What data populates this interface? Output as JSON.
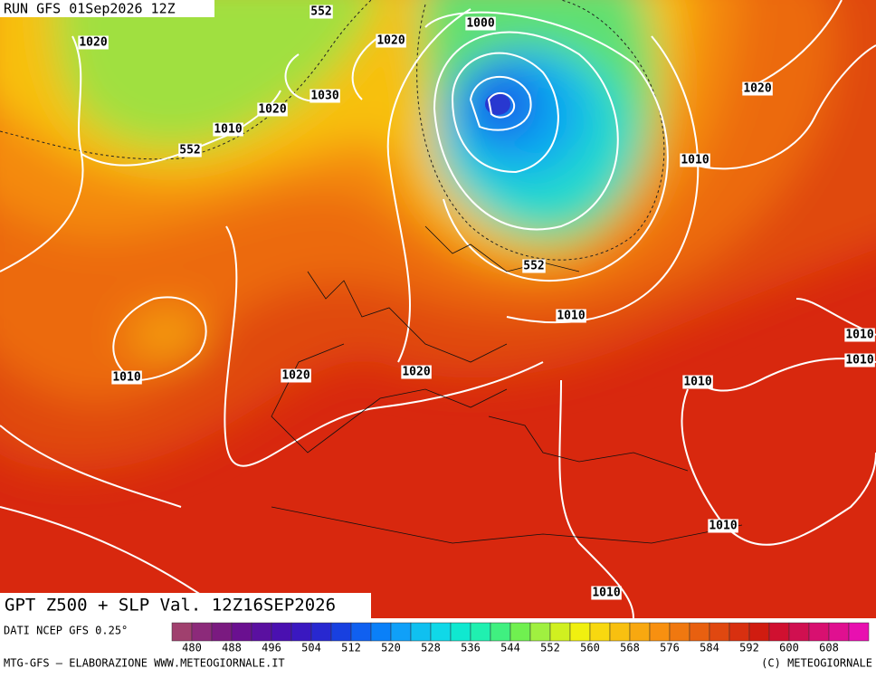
{
  "header": {
    "run": "RUN GFS 01Sep2026 12Z"
  },
  "map": {
    "title": "GPT Z500 + SLP Val. 12Z16SEP2026",
    "contour_labels": [
      "552",
      "1020",
      "1020",
      "1000",
      "1030",
      "1020",
      "1010",
      "552",
      "1020",
      "1010",
      "552",
      "1010",
      "1010",
      "1020",
      "1020",
      "1010",
      "1010",
      "1010",
      "1010",
      "1010"
    ]
  },
  "colorbar": {
    "source": "DATI NCEP GFS 0.25°",
    "colors": [
      "#a0406e",
      "#8c2a7a",
      "#7a1a80",
      "#6a1090",
      "#5a10a0",
      "#4a10b0",
      "#3a18c0",
      "#2828d0",
      "#1840e0",
      "#1060f0",
      "#0a80f8",
      "#10a0f8",
      "#10c0f0",
      "#10d8e8",
      "#10e8d0",
      "#20f0b0",
      "#40f080",
      "#70f050",
      "#a0f040",
      "#d0f020",
      "#f0f010",
      "#f8d810",
      "#f8c010",
      "#f8a810",
      "#f89010",
      "#f07810",
      "#e86010",
      "#e04810",
      "#d83010",
      "#d01c10",
      "#d01030",
      "#d01050",
      "#d81070",
      "#e01090",
      "#e810b0"
    ],
    "labels": [
      480,
      488,
      496,
      504,
      512,
      520,
      528,
      536,
      544,
      552,
      560,
      568,
      576,
      584,
      592,
      600,
      608
    ]
  },
  "footer": {
    "left": "MTG-GFS — ELABORAZIONE WWW.METEOGIORNALE.IT",
    "right": "(C) METEOGIORNALE"
  }
}
